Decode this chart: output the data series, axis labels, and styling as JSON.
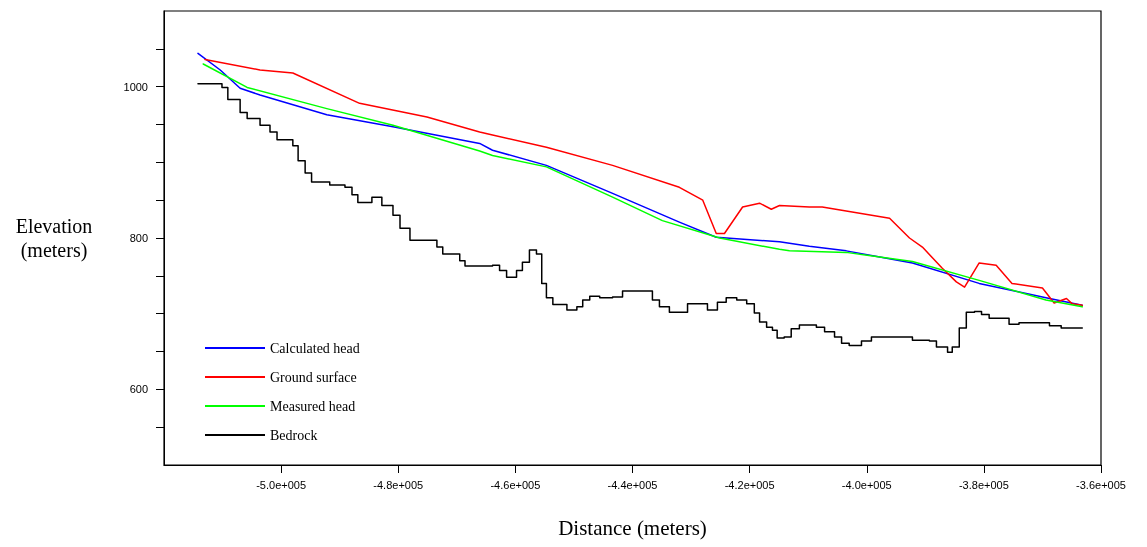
{
  "chart_data": {
    "type": "line",
    "xlabel": "Distance (meters)",
    "ylabel": "Elevation (meters)",
    "xlim": [
      -520000,
      -360000
    ],
    "xticks": [
      {
        "value": -500000,
        "label": "-5.0e+005"
      },
      {
        "value": -480000,
        "label": "-4.8e+005"
      },
      {
        "value": -460000,
        "label": "-4.6e+005"
      },
      {
        "value": -440000,
        "label": "-4.4e+005"
      },
      {
        "value": -420000,
        "label": "-4.2e+005"
      },
      {
        "value": -400000,
        "label": "-4.0e+005"
      },
      {
        "value": -380000,
        "label": "-3.8e+005"
      },
      {
        "value": -360000,
        "label": "-3.6e+005"
      }
    ],
    "ylim": [
      500,
      1100
    ],
    "yticks": [
      {
        "value": 550,
        "label": null
      },
      600,
      {
        "value": 650,
        "label": null
      },
      {
        "value": 700,
        "label": null
      },
      {
        "value": 750,
        "label": null
      },
      800,
      {
        "value": 850,
        "label": null
      },
      {
        "value": 900,
        "label": null
      },
      {
        "value": 950,
        "label": null
      },
      1000,
      {
        "value": 1050,
        "label": null
      }
    ],
    "grid": false,
    "legend": "bottom left",
    "marker": "none",
    "line_style": "solid",
    "series": [
      {
        "name": "Calculated head",
        "color": "#0000ff",
        "x": [
          -514200,
          -510400,
          -507000,
          -503600,
          -492200,
          -480900,
          -466100,
          -463900,
          -454700,
          -443400,
          -432000,
          -425700,
          -414900,
          -409800,
          -403500,
          -392200,
          -380800,
          -369400,
          -363200
        ],
        "values": [
          1044,
          1022,
          998,
          989,
          963,
          947,
          925,
          916,
          896,
          859,
          821,
          801,
          795,
          789,
          783,
          767,
          740,
          721,
          711
        ]
      },
      {
        "name": "Ground surface",
        "color": "#ff0000",
        "x": [
          -513000,
          -503600,
          -498000,
          -486600,
          -475100,
          -466100,
          -463900,
          -454700,
          -443400,
          -432000,
          -428000,
          -425700,
          -424300,
          -421200,
          -418300,
          -416300,
          -414900,
          -409800,
          -407600,
          -396100,
          -392700,
          -390500,
          -387100,
          -384700,
          -383300,
          -380800,
          -377900,
          -375200,
          -370000,
          -368000,
          -365900,
          -364900,
          -363200
        ],
        "values": [
          1036,
          1022,
          1018,
          978,
          960,
          940,
          936,
          920,
          896,
          867,
          850,
          806,
          806,
          841,
          846,
          838,
          843,
          841,
          841,
          826,
          800,
          788,
          760,
          742,
          735,
          767,
          764,
          740,
          734,
          714,
          720,
          713,
          711
        ]
      },
      {
        "name": "Measured head",
        "color": "#00ff00",
        "x": [
          -513300,
          -505800,
          -492200,
          -480900,
          -466100,
          -463900,
          -454700,
          -443400,
          -434900,
          -425100,
          -414900,
          -413200,
          -403500,
          -392200,
          -380800,
          -369400,
          -363200
        ],
        "values": [
          1030,
          999,
          971,
          949,
          915,
          909,
          894,
          854,
          823,
          800,
          785,
          783,
          781,
          769,
          744,
          718,
          709
        ]
      },
      {
        "name": "Bedrock",
        "type": "step",
        "color": "#000000",
        "x": [
          -514200,
          -510100,
          -509100,
          -507000,
          -505800,
          -503600,
          -501900,
          -500700,
          -498000,
          -497100,
          -495900,
          -494800,
          -491700,
          -489100,
          -487900,
          -486900,
          -484500,
          -482800,
          -480900,
          -479700,
          -478000,
          -473400,
          -472400,
          -469500,
          -468600,
          -463900,
          -462700,
          -461500,
          -459800,
          -458800,
          -457600,
          -456400,
          -455500,
          -454700,
          -453600,
          -451200,
          -449500,
          -448500,
          -447300,
          -445600,
          -443400,
          -441700,
          -436600,
          -435400,
          -433700,
          -430600,
          -427200,
          -425500,
          -424000,
          -422200,
          -420500,
          -419200,
          -418300,
          -417100,
          -416100,
          -415300,
          -414100,
          -412900,
          -411500,
          -408600,
          -407200,
          -405500,
          -404300,
          -403000,
          -400900,
          -399200,
          -392200,
          -389300,
          -388100,
          -386200,
          -385400,
          -384200,
          -383000,
          -381600,
          -380400,
          -379100,
          -375700,
          -374000,
          -368800,
          -366800,
          -363200
        ],
        "values": [
          1004,
          999,
          983,
          966,
          958,
          949,
          940,
          930,
          922,
          902,
          886,
          874,
          870,
          867,
          857,
          847,
          854,
          843,
          830,
          813,
          797,
          788,
          779,
          770,
          763,
          764,
          757,
          748,
          757,
          768,
          784,
          779,
          740,
          721,
          712,
          705,
          709,
          718,
          723,
          721,
          722,
          730,
          718,
          709,
          702,
          713,
          705,
          715,
          721,
          718,
          713,
          701,
          689,
          682,
          678,
          668,
          669,
          680,
          685,
          682,
          676,
          669,
          661,
          658,
          664,
          669,
          665,
          664,
          656,
          649,
          656,
          681,
          702,
          703,
          699,
          694,
          686,
          688,
          684,
          681,
          681
        ]
      }
    ]
  }
}
